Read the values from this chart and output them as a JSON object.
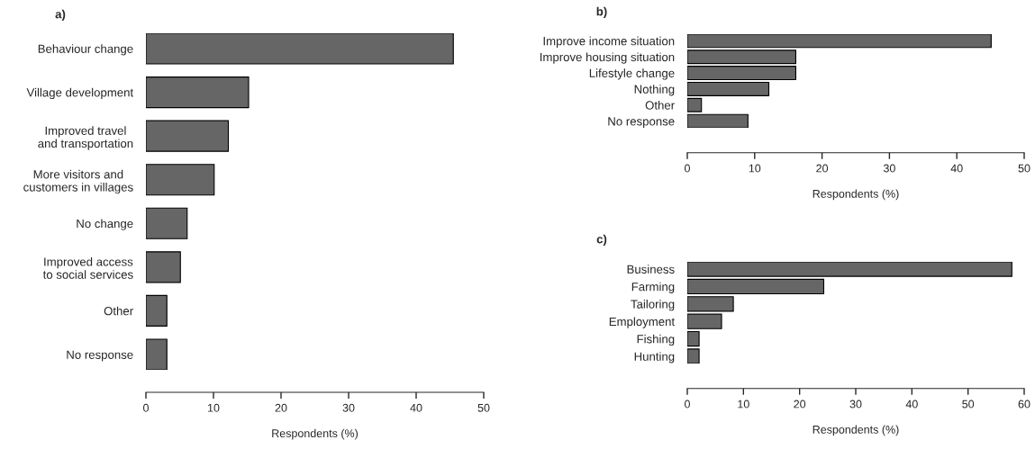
{
  "chart_data": [
    {
      "type": "bar",
      "orientation": "horizontal",
      "title": "a)",
      "xlabel": "Respondents (%)",
      "color": "#666666",
      "categories": [
        "Behaviour change",
        "Village development",
        "Improved travel\nand transportation",
        "More visitors and\ncustomers in villages",
        "No change",
        "Improved access\nto social services",
        "Other",
        "No response"
      ],
      "values": [
        45.5,
        15.2,
        12.2,
        10.1,
        6.1,
        5.1,
        3.1,
        3.1
      ],
      "xlim": [
        0,
        50
      ],
      "xticks": [
        0,
        10,
        20,
        30,
        40,
        50
      ]
    },
    {
      "type": "bar",
      "orientation": "horizontal",
      "title": "b)",
      "xlabel": "Respondents (%)",
      "color": "#666666",
      "categories": [
        "Improve income situation",
        "Improve housing situation",
        "Lifestyle change",
        "Nothing",
        "Other",
        "No response"
      ],
      "values": [
        45.1,
        16.1,
        16.1,
        12.1,
        2.1,
        9.0
      ],
      "xlim": [
        0,
        50
      ],
      "xticks": [
        0,
        10,
        20,
        30,
        40,
        50
      ]
    },
    {
      "type": "bar",
      "orientation": "horizontal",
      "title": "c)",
      "xlabel": "Respondents (%)",
      "color": "#666666",
      "categories": [
        "Business",
        "Farming",
        "Tailoring",
        "Employment",
        "Fishing",
        "Hunting"
      ],
      "values": [
        57.8,
        24.3,
        8.2,
        6.1,
        2.1,
        2.1
      ],
      "xlim": [
        0,
        60
      ],
      "xticks": [
        0,
        10,
        20,
        30,
        40,
        50,
        60
      ]
    }
  ]
}
